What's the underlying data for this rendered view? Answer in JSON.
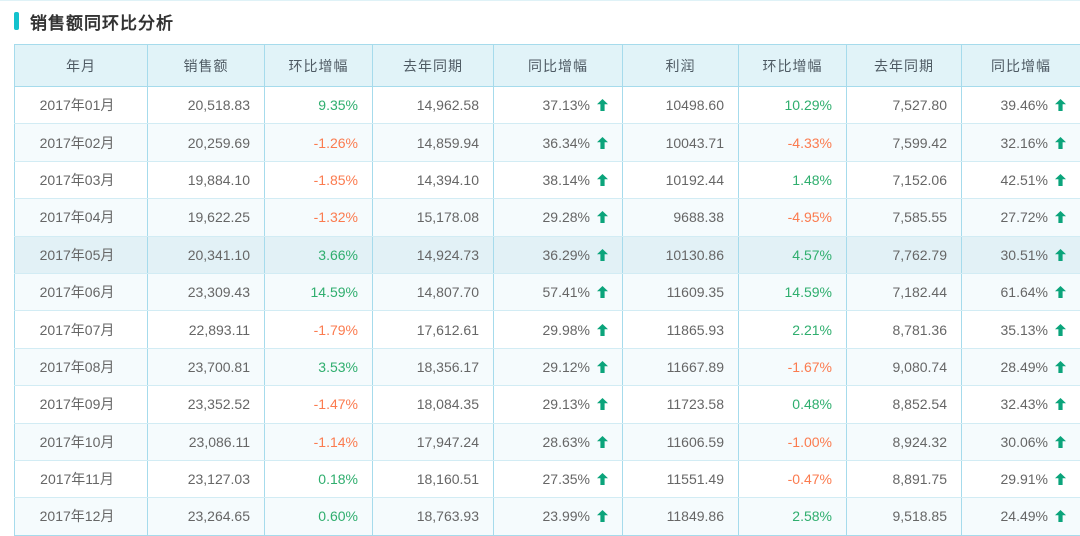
{
  "title": {
    "text": "销售额同环比分析"
  },
  "colors": {
    "accent": "#13c2cd",
    "positive_pct": "#2fae6e",
    "negative_pct": "#fb7b4f",
    "up_arrow": "#0ba47b",
    "header_bg": "#e1f3f8",
    "table_border": "#a6dbec",
    "row_alt_bg": "#f5fbfd",
    "row_highlight_bg": "#e2f1f6"
  },
  "chart_data": {
    "type": "table",
    "title": "销售额同环比分析",
    "highlighted_row_index": 4,
    "columns": [
      {
        "key": "month",
        "label": "年月",
        "type": "month"
      },
      {
        "key": "sales",
        "label": "销售额",
        "type": "num"
      },
      {
        "key": "sales_mom",
        "label": "环比增幅",
        "type": "mom"
      },
      {
        "key": "sales_ly",
        "label": "去年同期",
        "type": "num"
      },
      {
        "key": "sales_yoy",
        "label": "同比增幅",
        "type": "yoy"
      },
      {
        "key": "profit",
        "label": "利润",
        "type": "num"
      },
      {
        "key": "profit_mom",
        "label": "环比增幅",
        "type": "mom"
      },
      {
        "key": "profit_ly",
        "label": "去年同期",
        "type": "num"
      },
      {
        "key": "profit_yoy",
        "label": "同比增幅",
        "type": "yoy"
      }
    ],
    "rows": [
      {
        "month": "2017年01月",
        "sales": "20,518.83",
        "sales_mom": "9.35%",
        "sales_ly": "14,962.58",
        "sales_yoy": "37.13%",
        "profit": "10498.60",
        "profit_mom": "10.29%",
        "profit_ly": "7,527.80",
        "profit_yoy": "39.46%"
      },
      {
        "month": "2017年02月",
        "sales": "20,259.69",
        "sales_mom": "-1.26%",
        "sales_ly": "14,859.94",
        "sales_yoy": "36.34%",
        "profit": "10043.71",
        "profit_mom": "-4.33%",
        "profit_ly": "7,599.42",
        "profit_yoy": "32.16%"
      },
      {
        "month": "2017年03月",
        "sales": "19,884.10",
        "sales_mom": "-1.85%",
        "sales_ly": "14,394.10",
        "sales_yoy": "38.14%",
        "profit": "10192.44",
        "profit_mom": "1.48%",
        "profit_ly": "7,152.06",
        "profit_yoy": "42.51%"
      },
      {
        "month": "2017年04月",
        "sales": "19,622.25",
        "sales_mom": "-1.32%",
        "sales_ly": "15,178.08",
        "sales_yoy": "29.28%",
        "profit": "9688.38",
        "profit_mom": "-4.95%",
        "profit_ly": "7,585.55",
        "profit_yoy": "27.72%"
      },
      {
        "month": "2017年05月",
        "sales": "20,341.10",
        "sales_mom": "3.66%",
        "sales_ly": "14,924.73",
        "sales_yoy": "36.29%",
        "profit": "10130.86",
        "profit_mom": "4.57%",
        "profit_ly": "7,762.79",
        "profit_yoy": "30.51%"
      },
      {
        "month": "2017年06月",
        "sales": "23,309.43",
        "sales_mom": "14.59%",
        "sales_ly": "14,807.70",
        "sales_yoy": "57.41%",
        "profit": "11609.35",
        "profit_mom": "14.59%",
        "profit_ly": "7,182.44",
        "profit_yoy": "61.64%"
      },
      {
        "month": "2017年07月",
        "sales": "22,893.11",
        "sales_mom": "-1.79%",
        "sales_ly": "17,612.61",
        "sales_yoy": "29.98%",
        "profit": "11865.93",
        "profit_mom": "2.21%",
        "profit_ly": "8,781.36",
        "profit_yoy": "35.13%"
      },
      {
        "month": "2017年08月",
        "sales": "23,700.81",
        "sales_mom": "3.53%",
        "sales_ly": "18,356.17",
        "sales_yoy": "29.12%",
        "profit": "11667.89",
        "profit_mom": "-1.67%",
        "profit_ly": "9,080.74",
        "profit_yoy": "28.49%"
      },
      {
        "month": "2017年09月",
        "sales": "23,352.52",
        "sales_mom": "-1.47%",
        "sales_ly": "18,084.35",
        "sales_yoy": "29.13%",
        "profit": "11723.58",
        "profit_mom": "0.48%",
        "profit_ly": "8,852.54",
        "profit_yoy": "32.43%"
      },
      {
        "month": "2017年10月",
        "sales": "23,086.11",
        "sales_mom": "-1.14%",
        "sales_ly": "17,947.24",
        "sales_yoy": "28.63%",
        "profit": "11606.59",
        "profit_mom": "-1.00%",
        "profit_ly": "8,924.32",
        "profit_yoy": "30.06%"
      },
      {
        "month": "2017年11月",
        "sales": "23,127.03",
        "sales_mom": "0.18%",
        "sales_ly": "18,160.51",
        "sales_yoy": "27.35%",
        "profit": "11551.49",
        "profit_mom": "-0.47%",
        "profit_ly": "8,891.75",
        "profit_yoy": "29.91%"
      },
      {
        "month": "2017年12月",
        "sales": "23,264.65",
        "sales_mom": "0.60%",
        "sales_ly": "18,763.93",
        "sales_yoy": "23.99%",
        "profit": "11849.86",
        "profit_mom": "2.58%",
        "profit_ly": "9,518.85",
        "profit_yoy": "24.49%"
      }
    ]
  }
}
